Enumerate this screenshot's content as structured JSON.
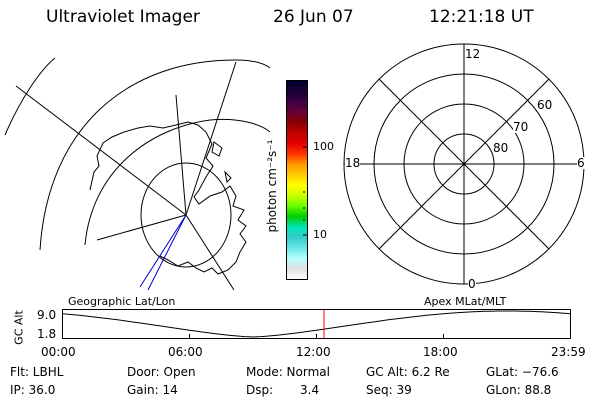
{
  "header": {
    "instrument": "Ultraviolet Imager",
    "date": "26 Jun 07",
    "time": "12:21:18 UT"
  },
  "colorbar": {
    "label": "photon cm⁻²s⁻¹",
    "tick_labels": [
      "100",
      "10"
    ],
    "colors": [
      "#000033",
      "#1a0033",
      "#400044",
      "#660033",
      "#8b0000",
      "#c00000",
      "#e60000",
      "#ff3300",
      "#ff9900",
      "#ffcc00",
      "#ffff00",
      "#ccff00",
      "#66ff00",
      "#00cc00",
      "#00e6b8",
      "#33cccc",
      "#66e6e6",
      "#b3ffff",
      "#e0e0e0",
      "#ffffff"
    ]
  },
  "geo_map": {
    "label": "Geographic Lat/Lon"
  },
  "apex_dial": {
    "label": "Apex MLat/MLT",
    "mlt_labels": {
      "top": "12",
      "left": "18",
      "right": "6",
      "bottom": "0"
    },
    "mlat_labels": [
      "60",
      "70",
      "80"
    ]
  },
  "altitude_plot": {
    "axis_title": "GC Alt",
    "y_ticks": [
      "9.0",
      "1.8"
    ],
    "x_ticks": [
      "00:00",
      "06:00",
      "12:00",
      "18:00",
      "23:59"
    ],
    "current_time_marker": "12:21:18",
    "marker_color": "#ff0000"
  },
  "status": {
    "flt": "Flt: LBHL",
    "door": "Door: Open",
    "mode": "Mode: Normal",
    "gc_alt": "GC Alt: 6.2 Re",
    "glat": "GLat: −76.6",
    "ip": "IP: 36.0",
    "gain": "Gain: 14",
    "dsp_label": "Dsp:",
    "dsp_value": "3.4",
    "seq": "Seq: 39",
    "glon": "GLon: 88.8"
  }
}
